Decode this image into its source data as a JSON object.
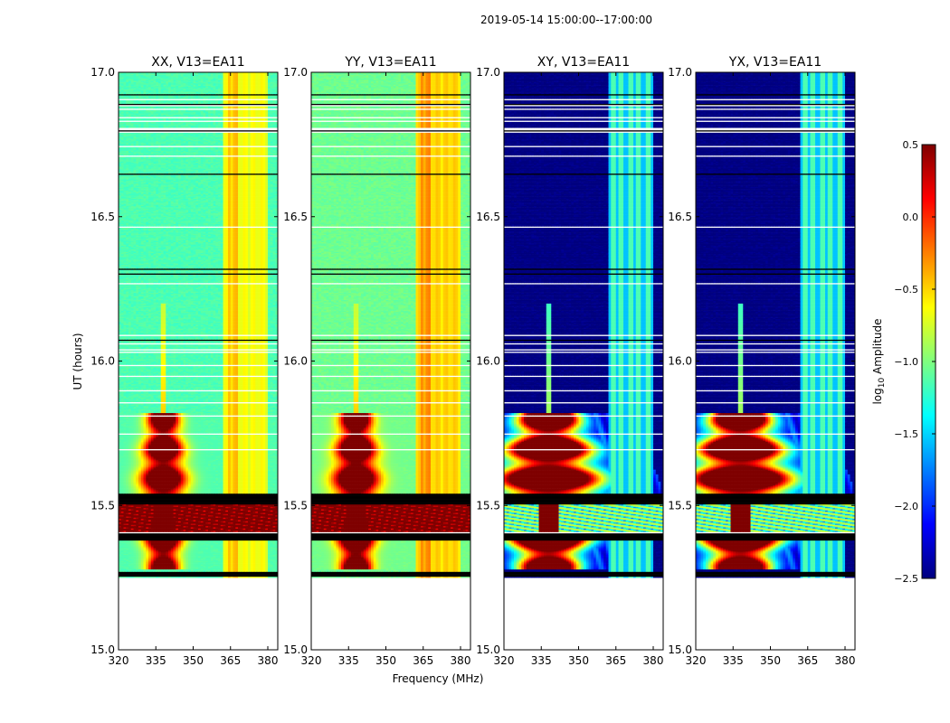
{
  "suptitle": "2019-05-14  15:00:00--17:00:00",
  "colors": {
    "background": "#ffffff",
    "axis": "#000000",
    "flagged": "#000000",
    "missing": "#ffffff"
  },
  "colormap": {
    "name": "jet",
    "stops": [
      "#00007f",
      "#0000ff",
      "#007fff",
      "#00ffff",
      "#7fff7f",
      "#ffff00",
      "#ff7f00",
      "#ff0000",
      "#7f0000"
    ]
  },
  "chart_data": {
    "type": "heatmap",
    "xlabel": "Frequency (MHz)",
    "ylabel": "UT (hours)",
    "xlim": [
      320,
      384
    ],
    "ylim": [
      15.0,
      17.0
    ],
    "xticks": [
      320,
      335,
      350,
      365,
      380
    ],
    "yticks": [
      15.0,
      15.5,
      16.0,
      16.5,
      17.0
    ],
    "data_time_range": [
      15.25,
      17.0
    ],
    "burst_time_range": [
      15.28,
      15.82
    ],
    "burst_freq_mhz": 338,
    "rfi_band_mhz": [
      362,
      380
    ],
    "panels": [
      {
        "title": "XX, V13=EA11",
        "pol": "XX",
        "background_log10": -1.15,
        "rfi_log10": -0.75
      },
      {
        "title": "YY, V13=EA11",
        "pol": "YY",
        "background_log10": -1.05,
        "rfi_log10": -0.6
      },
      {
        "title": "XY, V13=EA11",
        "pol": "XY",
        "background_log10": -2.5,
        "rfi_log10": -1.3
      },
      {
        "title": "YX, V13=EA11",
        "pol": "YX",
        "background_log10": -2.5,
        "rfi_log10": -1.3
      }
    ],
    "colorbar": {
      "label_prefix": "log",
      "label_sub": "10",
      "label_suffix": " Amplitude",
      "range": [
        -2.5,
        0.5
      ],
      "ticks": [
        {
          "value": 0.5,
          "label": "0.5"
        },
        {
          "value": 0.0,
          "label": "0.0"
        },
        {
          "value": -0.5,
          "label": "−0.5"
        },
        {
          "value": -1.0,
          "label": "−1.0"
        },
        {
          "value": -1.5,
          "label": "−1.5"
        },
        {
          "value": -2.0,
          "label": "−2.0"
        },
        {
          "value": -2.5,
          "label": "−2.5"
        }
      ]
    }
  }
}
